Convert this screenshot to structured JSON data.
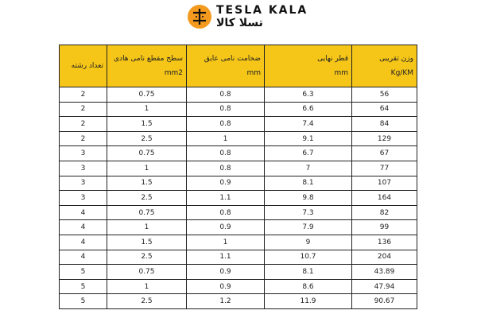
{
  "brand": {
    "name_en": "TESLA KALA",
    "name_fa": "تسلا کالا",
    "color": "#f39a1f"
  },
  "table": {
    "header_color": "#f5c518",
    "headers": [
      {
        "line1": "تعداد رشته",
        "line2": ""
      },
      {
        "line1": "سطح مقطع نامی هادی",
        "line2": "mm2"
      },
      {
        "line1": "ضخامت نامی عایق",
        "line2": "mm"
      },
      {
        "line1": "قطر نهایی",
        "line2": "mm"
      },
      {
        "line1": "وزن تقریبی",
        "line2": "Kg/KM"
      }
    ],
    "rows": [
      [
        "2",
        "0.75",
        "0.8",
        "6.3",
        "56"
      ],
      [
        "2",
        "1",
        "0.8",
        "6.6",
        "64"
      ],
      [
        "2",
        "1.5",
        "0.8",
        "7.4",
        "84"
      ],
      [
        "2",
        "2.5",
        "1",
        "9.1",
        "129"
      ],
      [
        "3",
        "0.75",
        "0.8",
        "6.7",
        "67"
      ],
      [
        "3",
        "1",
        "0.8",
        "7",
        "77"
      ],
      [
        "3",
        "1.5",
        "0.9",
        "8.1",
        "107"
      ],
      [
        "3",
        "2.5",
        "1.1",
        "9.8",
        "164"
      ],
      [
        "4",
        "0.75",
        "0.8",
        "7.3",
        "82"
      ],
      [
        "4",
        "1",
        "0.9",
        "7.9",
        "99"
      ],
      [
        "4",
        "1.5",
        "1",
        "9",
        "136"
      ],
      [
        "4",
        "2.5",
        "1.1",
        "10.7",
        "204"
      ],
      [
        "5",
        "0.75",
        "0.9",
        "8.1",
        "43.89"
      ],
      [
        "5",
        "1",
        "0.9",
        "8.6",
        "47.94"
      ],
      [
        "5",
        "2.5",
        "1.2",
        "11.9",
        "90.67"
      ]
    ]
  }
}
